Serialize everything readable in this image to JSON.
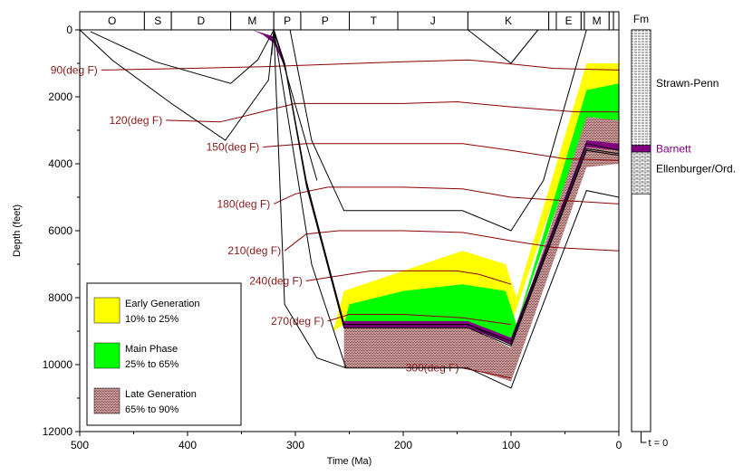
{
  "chart_data": {
    "type": "line",
    "xlabel": "Time (Ma)",
    "ylabel": "Depth (feet)",
    "xlim": [
      500,
      0
    ],
    "ylim": [
      12000,
      0
    ],
    "x_ticks": [
      500,
      400,
      300,
      200,
      100,
      0
    ],
    "y_ticks": [
      0,
      2000,
      4000,
      6000,
      8000,
      10000,
      12000
    ],
    "grid": false,
    "periods": [
      {
        "label": "O",
        "start": 500,
        "end": 440
      },
      {
        "label": "S",
        "start": 440,
        "end": 415
      },
      {
        "label": "D",
        "start": 415,
        "end": 360
      },
      {
        "label": "M",
        "start": 360,
        "end": 320
      },
      {
        "label": "P",
        "start": 320,
        "end": 295
      },
      {
        "label": "P",
        "start": 295,
        "end": 250
      },
      {
        "label": "T",
        "start": 250,
        "end": 205
      },
      {
        "label": "J",
        "start": 205,
        "end": 140
      },
      {
        "label": "K",
        "start": 140,
        "end": 65
      },
      {
        "label": "",
        "start": 65,
        "end": 58
      },
      {
        "label": "E",
        "start": 58,
        "end": 35
      },
      {
        "label": "",
        "start": 35,
        "end": 32
      },
      {
        "label": "M",
        "start": 32,
        "end": 9
      },
      {
        "label": "",
        "start": 9,
        "end": 5
      },
      {
        "label": "",
        "start": 5,
        "end": 0
      }
    ],
    "burial_curves": [
      {
        "points": [
          [
            490,
            50
          ],
          [
            430,
            950
          ],
          [
            360,
            1600
          ],
          [
            335,
            900
          ],
          [
            320,
            0
          ]
        ]
      },
      {
        "points": [
          [
            500,
            0
          ],
          [
            470,
            900
          ],
          [
            415,
            2200
          ],
          [
            365,
            3300
          ],
          [
            325,
            1500
          ],
          [
            320,
            0
          ]
        ]
      },
      {
        "points": [
          [
            320,
            0
          ],
          [
            310,
            1000
          ],
          [
            290,
            4500
          ],
          [
            255,
            8800
          ],
          [
            140,
            8800
          ],
          [
            100,
            9300
          ],
          [
            30,
            3400
          ],
          [
            0,
            3600
          ]
        ]
      },
      {
        "points": [
          [
            320,
            0
          ],
          [
            310,
            1000
          ],
          [
            290,
            4500
          ],
          [
            255,
            8800
          ],
          [
            140,
            8800
          ],
          [
            100,
            9400
          ],
          [
            30,
            3550
          ],
          [
            0,
            3700
          ]
        ]
      },
      {
        "points": [
          [
            320,
            0
          ],
          [
            310,
            1000
          ],
          [
            290,
            4600
          ],
          [
            255,
            8900
          ],
          [
            140,
            8900
          ],
          [
            100,
            9450
          ],
          [
            30,
            3600
          ],
          [
            0,
            3750
          ]
        ]
      },
      {
        "points": [
          [
            305,
            0
          ],
          [
            285,
            3300
          ],
          [
            255,
            5400
          ],
          [
            145,
            5400
          ],
          [
            100,
            6000
          ],
          [
            70,
            4500
          ],
          [
            30,
            0
          ]
        ]
      },
      {
        "points": [
          [
            320,
            0
          ],
          [
            285,
            7000
          ],
          [
            253,
            10100
          ],
          [
            140,
            10100
          ],
          [
            100,
            10700
          ],
          [
            30,
            4800
          ],
          [
            0,
            5000
          ]
        ]
      },
      {
        "points": [
          [
            320,
            0
          ],
          [
            310,
            8200
          ],
          [
            280,
            9800
          ],
          [
            253,
            10100
          ]
        ]
      },
      {
        "points": [
          [
            140,
            0
          ],
          [
            100,
            1000
          ],
          [
            75,
            0
          ]
        ]
      },
      {
        "points": [
          [
            30,
            0
          ],
          [
            0,
            0
          ]
        ]
      }
    ],
    "formation_tops": [
      {
        "points": [
          [
            322,
            750
          ],
          [
            320,
            0
          ]
        ]
      },
      {
        "points": [
          [
            320,
            0
          ],
          [
            280,
            4500
          ]
        ]
      }
    ],
    "series": [
      {
        "name": "90(deg F)",
        "points": [
          [
            480,
            1200
          ],
          [
            400,
            1150
          ],
          [
            330,
            1100
          ],
          [
            200,
            950
          ],
          [
            140,
            900
          ],
          [
            120,
            950
          ],
          [
            60,
            1150
          ],
          [
            0,
            1200
          ]
        ]
      },
      {
        "name": "120(deg F)",
        "points": [
          [
            420,
            2700
          ],
          [
            370,
            2750
          ],
          [
            350,
            2600
          ],
          [
            300,
            2200
          ],
          [
            200,
            2200
          ],
          [
            150,
            2150
          ],
          [
            100,
            2300
          ],
          [
            40,
            2450
          ],
          [
            0,
            2450
          ]
        ]
      },
      {
        "name": "150(deg F)",
        "points": [
          [
            330,
            3500
          ],
          [
            310,
            3450
          ],
          [
            290,
            3400
          ],
          [
            200,
            3400
          ],
          [
            145,
            3400
          ],
          [
            100,
            3600
          ],
          [
            50,
            3850
          ],
          [
            0,
            3900
          ]
        ]
      },
      {
        "name": "180(deg F)",
        "points": [
          [
            320,
            5200
          ],
          [
            300,
            4900
          ],
          [
            270,
            4700
          ],
          [
            200,
            4700
          ],
          [
            145,
            4750
          ],
          [
            100,
            5000
          ],
          [
            50,
            5100
          ],
          [
            0,
            5200
          ]
        ]
      },
      {
        "name": "210(deg F)",
        "points": [
          [
            310,
            6600
          ],
          [
            290,
            6100
          ],
          [
            260,
            6000
          ],
          [
            200,
            6000
          ],
          [
            145,
            6050
          ],
          [
            100,
            6300
          ],
          [
            60,
            6500
          ],
          [
            0,
            6600
          ]
        ]
      },
      {
        "name": "240(deg F)",
        "points": [
          [
            290,
            7500
          ],
          [
            270,
            7400
          ],
          [
            230,
            7200
          ],
          [
            150,
            7200
          ],
          [
            130,
            7300
          ],
          [
            100,
            7600
          ]
        ]
      },
      {
        "name": "270(deg F)",
        "points": [
          [
            270,
            8700
          ],
          [
            250,
            8500
          ],
          [
            200,
            8500
          ],
          [
            145,
            8600
          ],
          [
            100,
            8800
          ]
        ]
      },
      {
        "name": "300(deg F)",
        "points": [
          [
            145,
            10100
          ],
          [
            100,
            10400
          ]
        ]
      }
    ],
    "maturity_zones": [
      {
        "name": "Early Generation",
        "color": "#ffff00",
        "polygon": [
          [
            265,
            9000
          ],
          [
            255,
            7800
          ],
          [
            200,
            7200
          ],
          [
            145,
            6600
          ],
          [
            105,
            7000
          ],
          [
            95,
            8000
          ],
          [
            30,
            1000
          ],
          [
            0,
            1000
          ],
          [
            0,
            2000
          ],
          [
            30,
            2200
          ],
          [
            100,
            8800
          ],
          [
            145,
            8800
          ],
          [
            255,
            8800
          ],
          [
            265,
            9000
          ]
        ]
      },
      {
        "name": "Main Phase",
        "color": "#00ff00",
        "polygon": [
          [
            260,
            9400
          ],
          [
            250,
            8200
          ],
          [
            200,
            7800
          ],
          [
            145,
            7600
          ],
          [
            105,
            7800
          ],
          [
            95,
            8800
          ],
          [
            30,
            1800
          ],
          [
            0,
            1600
          ],
          [
            0,
            2700
          ],
          [
            30,
            2700
          ],
          [
            100,
            9300
          ],
          [
            145,
            8800
          ],
          [
            255,
            8800
          ],
          [
            260,
            9400
          ]
        ]
      },
      {
        "name": "Late Generation",
        "color": "#c49a9a",
        "polygon": [
          [
            255,
            10100
          ],
          [
            255,
            8800
          ],
          [
            145,
            8800
          ],
          [
            100,
            9500
          ],
          [
            30,
            2600
          ],
          [
            0,
            2700
          ],
          [
            0,
            4000
          ],
          [
            30,
            4100
          ],
          [
            100,
            10500
          ],
          [
            140,
            10100
          ],
          [
            255,
            10100
          ]
        ]
      },
      {
        "name": "Barnett",
        "color": "#800080",
        "polygon": [
          [
            340,
            0
          ],
          [
            320,
            200
          ],
          [
            310,
            1000
          ],
          [
            290,
            4500
          ],
          [
            255,
            8700
          ],
          [
            140,
            8700
          ],
          [
            100,
            9200
          ],
          [
            30,
            3300
          ],
          [
            0,
            3400
          ],
          [
            0,
            3600
          ],
          [
            30,
            3500
          ],
          [
            100,
            9400
          ],
          [
            140,
            8900
          ],
          [
            255,
            8900
          ],
          [
            290,
            4700
          ],
          [
            310,
            1100
          ],
          [
            320,
            400
          ],
          [
            330,
            150
          ],
          [
            340,
            0
          ]
        ]
      }
    ],
    "legend": {
      "placement": "bottom-left",
      "entries": [
        {
          "label1": "Early Generation",
          "label2": "10% to 25%",
          "color": "#ffff00"
        },
        {
          "label1": "Main Phase",
          "label2": "25% to 65%",
          "color": "#00ff00"
        },
        {
          "label1": "Late Generation",
          "label2": "65% to 90%",
          "color": "#c49a9a"
        }
      ]
    },
    "formation_column": {
      "title": "Fm",
      "footer": "t = 0",
      "units": [
        {
          "name": "Strawn-Penn",
          "top": 0,
          "base": 3450,
          "color": "#000000"
        },
        {
          "name": "Barnett",
          "top": 3450,
          "base": 3650,
          "color": "#800080"
        },
        {
          "name": "Ellenburger/Ord.",
          "top": 3650,
          "base": 4900,
          "color": "#000000"
        }
      ]
    },
    "colors": {
      "isotherm": "#8b0000",
      "burial": "#000000",
      "label": "#8b1a1a",
      "axis": "#000000"
    }
  }
}
